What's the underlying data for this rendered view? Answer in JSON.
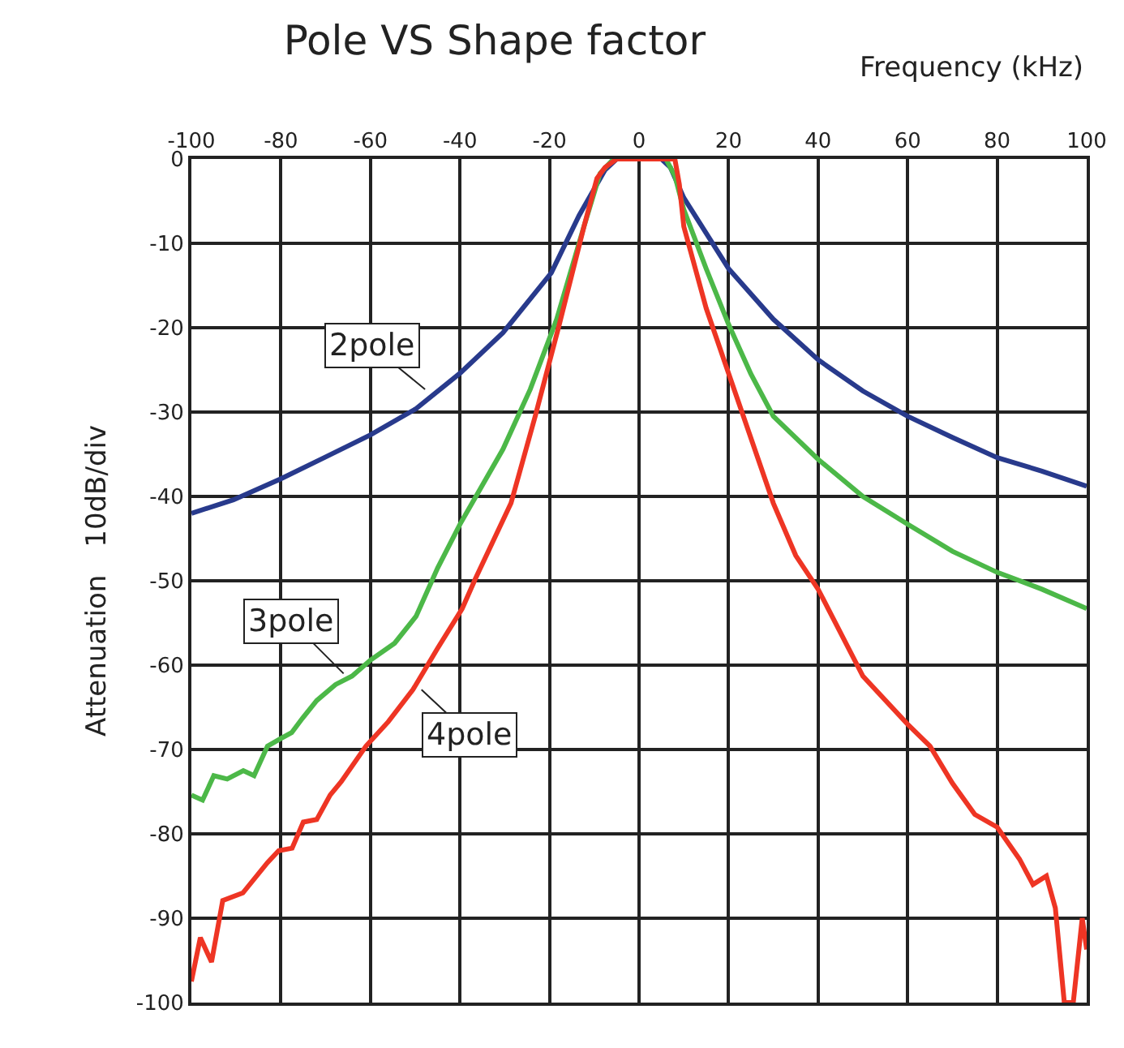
{
  "chart_data": {
    "type": "line",
    "title": "Pole VS Shape factor",
    "xlabel": "Frequency (kHz)",
    "ylabel": "Attenuation　10dB/div",
    "xlim": [
      -100,
      100
    ],
    "xticks": [
      -100,
      -80,
      -60,
      -40,
      -20,
      0,
      20,
      40,
      60,
      80,
      100
    ],
    "ylim": [
      -100,
      0
    ],
    "yticks": [
      0,
      -10,
      -20,
      -30,
      -40,
      -50,
      -60,
      -70,
      -80,
      -90,
      -100
    ],
    "grid": true,
    "marker": "none",
    "line_style": "solid",
    "series": [
      {
        "color": "#283a8c",
        "x": [
          -100,
          -90.6,
          -80,
          -70.3,
          -60,
          -49.8,
          -40,
          -30.4,
          -19.6,
          -13.4,
          -7.6,
          -5,
          0,
          5,
          7,
          10,
          20,
          30,
          40,
          50,
          60,
          70,
          80,
          90,
          100
        ],
        "values": [
          -42,
          -40.4,
          -37.9,
          -35.4,
          -32.7,
          -29.6,
          -25.4,
          -20.6,
          -13.5,
          -6.7,
          -1.3,
          0,
          0,
          0,
          -1,
          -4.6,
          -13,
          -19,
          -23.8,
          -27.5,
          -30.5,
          -33,
          -35.4,
          -37,
          -38.8
        ]
      },
      {
        "color": "#4cb848",
        "x": [
          -100,
          -97.5,
          -95,
          -92,
          -88.4,
          -86,
          -83,
          -80,
          -77.6,
          -75.2,
          -72,
          -67.8,
          -64.1,
          -60,
          -54.6,
          -49.8,
          -45,
          -40,
          -30.4,
          -24.3,
          -18.4,
          -12.3,
          -8.7,
          -5.7,
          0,
          6,
          8,
          10,
          15,
          20,
          25,
          30,
          40,
          50,
          60,
          70,
          80,
          90,
          100
        ],
        "values": [
          -75.4,
          -76,
          -73.1,
          -73.5,
          -72.5,
          -73.1,
          -69.6,
          -68.7,
          -68,
          -66.3,
          -64.2,
          -62.3,
          -61.3,
          -59.4,
          -57.4,
          -54.2,
          -48.5,
          -43.3,
          -34.4,
          -27.3,
          -19,
          -8,
          -1.7,
          0,
          0,
          0,
          -2,
          -6,
          -13,
          -19.6,
          -25.5,
          -30.5,
          -35.6,
          -40,
          -43.3,
          -46.5,
          -49,
          -51,
          -53.3
        ]
      },
      {
        "color": "#ee3524",
        "x": [
          -100,
          -98,
          -95.5,
          -93,
          -88.5,
          -83,
          -80.5,
          -77.5,
          -75,
          -72,
          -69,
          -66.5,
          -61,
          -56,
          -50.5,
          -45,
          -39.5,
          -36.6,
          -28.6,
          -23.2,
          -17.8,
          -12.3,
          -9.4,
          -7.6,
          -5,
          0,
          8,
          9,
          10,
          15,
          20,
          30,
          35,
          40,
          50,
          60,
          65,
          70,
          75,
          80,
          85,
          88,
          91,
          93,
          95,
          97,
          99,
          100
        ],
        "values": [
          -97.5,
          -92.3,
          -95.2,
          -87.9,
          -87,
          -83.4,
          -82,
          -81.7,
          -78.6,
          -78.3,
          -75.4,
          -73.8,
          -69.6,
          -66.7,
          -62.9,
          -58,
          -53.3,
          -49.8,
          -40.8,
          -30.5,
          -19.6,
          -8,
          -2.3,
          -1,
          0,
          0,
          0,
          -3,
          -8,
          -17.7,
          -25.4,
          -40.8,
          -47,
          -51,
          -61.3,
          -67,
          -69.6,
          -74,
          -77.7,
          -79.2,
          -83,
          -86,
          -85,
          -88.8,
          -100,
          -100,
          -90,
          -93.7
        ]
      }
    ],
    "annotations": [
      {
        "text": "2pole",
        "x": -47.8,
        "y": -27.3
      },
      {
        "text": "3pole",
        "x": -66,
        "y": -61
      },
      {
        "text": "4pole",
        "x": -48.6,
        "y": -62.9
      }
    ]
  }
}
